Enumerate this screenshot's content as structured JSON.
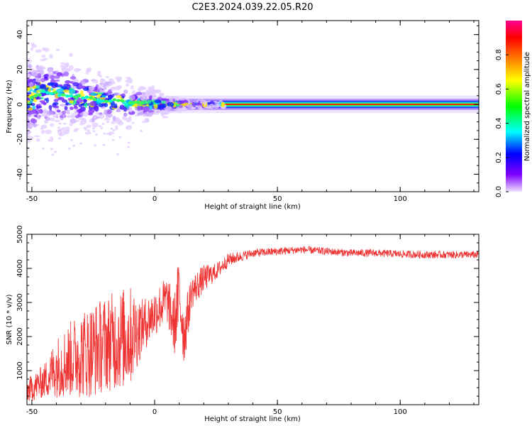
{
  "title": "C2E3.2024.039.22.05.R20",
  "chart_data": [
    {
      "type": "heatmap",
      "title": "",
      "xlabel": "Height of straight line (km)",
      "ylabel": "Frequency (Hz)",
      "xlim": [
        -52,
        132
      ],
      "ylim": [
        -50,
        48
      ],
      "xticks": [
        -50,
        0,
        50,
        100
      ],
      "yticks": [
        -40,
        -20,
        0,
        20,
        40
      ],
      "colorbar": {
        "label": "Normalized spectral amplitude",
        "range": [
          0.0,
          1.0
        ],
        "ticks": [
          0.0,
          0.2,
          0.4,
          0.6,
          0.8
        ],
        "colormap": [
          "#ff00a0",
          "#ff0000",
          "#ff8800",
          "#ffff00",
          "#00ff00",
          "#00ffff",
          "#0000ff",
          "#7f00ff",
          "#e6ccff"
        ]
      },
      "ridge": {
        "description_points": [
          [
            -52,
            3
          ],
          [
            -45,
            7
          ],
          [
            -35,
            5
          ],
          [
            -25,
            3
          ],
          [
            -15,
            1.5
          ],
          [
            -8,
            0.5
          ],
          [
            0,
            0
          ],
          [
            130,
            0
          ]
        ],
        "core_color": "#ff3300"
      },
      "grid": false
    },
    {
      "type": "line",
      "title": "",
      "xlabel": "Height of straight line (km)",
      "ylabel": "SNR (10 * v/v)",
      "xlim": [
        -52,
        132
      ],
      "ylim": [
        0,
        5000
      ],
      "xticks": [
        -50,
        0,
        50,
        100
      ],
      "yticks": [
        1000,
        2000,
        3000,
        4000,
        5000
      ],
      "color": "#ee3333",
      "envelope": {
        "x": [
          -52,
          -45,
          -40,
          -35,
          -30,
          -25,
          -20,
          -15,
          -10,
          -5,
          0,
          5,
          8,
          10,
          12,
          15,
          20,
          25,
          30,
          35,
          40,
          50,
          60,
          70,
          80,
          90,
          100,
          110,
          120,
          130
        ],
        "mean": [
          400,
          700,
          1100,
          1300,
          1500,
          1600,
          1800,
          1900,
          2000,
          2300,
          2700,
          3100,
          2300,
          3300,
          2000,
          3300,
          3700,
          3900,
          4250,
          4350,
          4450,
          4500,
          4550,
          4500,
          4450,
          4450,
          4420,
          4400,
          4400,
          4400
        ],
        "amplitude": [
          350,
          500,
          900,
          1100,
          1300,
          1400,
          1400,
          1500,
          1500,
          800,
          700,
          700,
          900,
          1200,
          900,
          500,
          400,
          250,
          200,
          150,
          120,
          120,
          110,
          110,
          110,
          110,
          110,
          110,
          110,
          110
        ]
      },
      "grid": false
    }
  ]
}
